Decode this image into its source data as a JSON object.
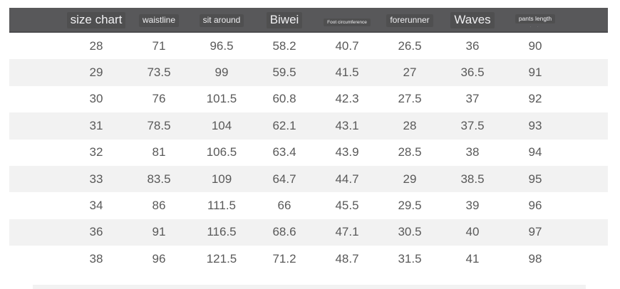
{
  "chart_data": {
    "type": "table",
    "title": "size chart",
    "columns": [
      {
        "label": "size chart",
        "size": "lg"
      },
      {
        "label": "waistline",
        "size": "md"
      },
      {
        "label": "sit around",
        "size": "md"
      },
      {
        "label": "Biwei",
        "size": "lg"
      },
      {
        "label": "Foot circumference",
        "size": "xs"
      },
      {
        "label": "forerunner",
        "size": "md"
      },
      {
        "label": "Waves",
        "size": "lg"
      },
      {
        "label": "pants length",
        "size": "sm",
        "subtext": "· ·"
      }
    ],
    "rows": [
      [
        "28",
        "71",
        "96.5",
        "58.2",
        "40.7",
        "26.5",
        "36",
        "90"
      ],
      [
        "29",
        "73.5",
        "99",
        "59.5",
        "41.5",
        "27",
        "36.5",
        "91"
      ],
      [
        "30",
        "76",
        "101.5",
        "60.8",
        "42.3",
        "27.5",
        "37",
        "92"
      ],
      [
        "31",
        "78.5",
        "104",
        "62.1",
        "43.1",
        "28",
        "37.5",
        "93"
      ],
      [
        "32",
        "81",
        "106.5",
        "63.4",
        "43.9",
        "28.5",
        "38",
        "94"
      ],
      [
        "33",
        "83.5",
        "109",
        "64.7",
        "44.7",
        "29",
        "38.5",
        "95"
      ],
      [
        "34",
        "86",
        "111.5",
        "66",
        "45.5",
        "29.5",
        "39",
        "96"
      ],
      [
        "36",
        "91",
        "116.5",
        "68.6",
        "47.1",
        "30.5",
        "40",
        "97"
      ],
      [
        "38",
        "96",
        "121.5",
        "71.2",
        "48.7",
        "31.5",
        "41",
        "98"
      ]
    ]
  },
  "colors": {
    "header_bg": "#58585a",
    "header_text": "#f0f0f2",
    "row_alt_bg": "#f2f2f2",
    "data_text": "#595959",
    "divider": "#f2f2f2"
  }
}
